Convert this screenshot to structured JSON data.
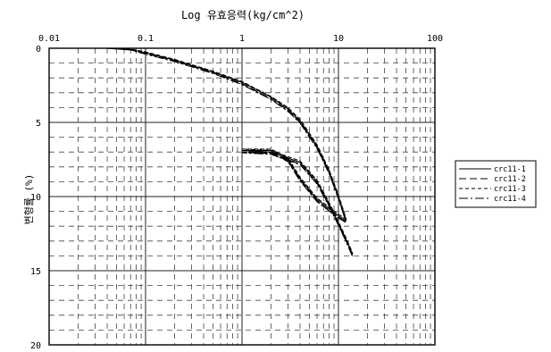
{
  "chart_data": {
    "type": "line",
    "title": "Log 유효응력(kg/cm^2)",
    "xlabel": "",
    "ylabel": "변형률 (%)",
    "x_scale": "log",
    "xlim": [
      0.01,
      100
    ],
    "ylim": [
      0,
      20
    ],
    "y_inverted": true,
    "x_ticks": [
      {
        "value": 0.01,
        "label": "0.01"
      },
      {
        "value": 0.1,
        "label": "0.1"
      },
      {
        "value": 1,
        "label": "1"
      },
      {
        "value": 10,
        "label": "10"
      },
      {
        "value": 100,
        "label": "100"
      }
    ],
    "y_ticks": [
      {
        "value": 0,
        "label": "0"
      },
      {
        "value": 5,
        "label": "5"
      },
      {
        "value": 10,
        "label": "10"
      },
      {
        "value": 15,
        "label": "15"
      },
      {
        "value": 20,
        "label": "20"
      }
    ],
    "grid": true,
    "legend_position": "right",
    "series": [
      {
        "name": "crc11-1",
        "x": [
          0.04,
          0.07,
          0.1,
          0.2,
          0.5,
          1,
          2,
          3,
          4,
          6,
          8,
          10,
          12,
          10,
          6,
          4,
          3,
          2,
          1,
          2,
          4,
          6,
          8,
          10,
          12,
          14
        ],
        "y": [
          0.0,
          0.1,
          0.3,
          0.8,
          1.6,
          2.3,
          3.3,
          4.1,
          4.9,
          6.6,
          8.3,
          10.0,
          11.6,
          11.3,
          10.2,
          8.8,
          7.5,
          6.9,
          6.9,
          7.0,
          7.7,
          9.0,
          10.5,
          11.8,
          12.9,
          13.9
        ],
        "dash": "solid"
      },
      {
        "name": "crc11-2",
        "x": [
          0.04,
          0.07,
          0.1,
          0.2,
          0.5,
          1,
          2,
          3,
          4,
          6,
          8,
          10,
          12,
          10,
          6,
          4,
          3,
          2,
          1,
          2,
          4,
          6,
          8,
          10,
          12,
          14
        ],
        "y": [
          0.0,
          0.1,
          0.35,
          0.85,
          1.65,
          2.4,
          3.4,
          4.2,
          5.0,
          6.7,
          8.4,
          10.1,
          11.7,
          11.4,
          10.3,
          8.9,
          7.6,
          7.0,
          7.0,
          7.1,
          7.8,
          9.1,
          10.6,
          11.9,
          13.0,
          14.0
        ],
        "dash": "8 4"
      },
      {
        "name": "crc11-3",
        "x": [
          0.04,
          0.07,
          0.1,
          0.2,
          0.5,
          1,
          2,
          3,
          4,
          6,
          8,
          10,
          12,
          10,
          6,
          4,
          3,
          2,
          1,
          2,
          4,
          6,
          8,
          10,
          12,
          14
        ],
        "y": [
          0.0,
          0.05,
          0.25,
          0.75,
          1.55,
          2.25,
          3.25,
          4.0,
          4.8,
          6.5,
          8.2,
          9.9,
          11.5,
          11.2,
          10.1,
          8.7,
          7.4,
          6.8,
          6.8,
          6.9,
          7.6,
          8.9,
          10.4,
          11.7,
          12.8,
          13.8
        ],
        "dash": "4 3"
      },
      {
        "name": "crc11-4",
        "x": [
          0.04,
          0.07,
          0.1,
          0.2,
          0.5,
          1,
          2,
          3,
          4,
          6,
          8,
          10,
          12,
          10,
          6,
          4,
          3,
          2,
          1,
          2,
          4,
          6,
          8,
          10,
          12,
          14
        ],
        "y": [
          0.0,
          0.12,
          0.4,
          0.9,
          1.7,
          2.45,
          3.45,
          4.25,
          5.05,
          6.75,
          8.45,
          10.15,
          11.75,
          11.45,
          10.35,
          8.95,
          7.65,
          7.05,
          7.05,
          7.15,
          7.85,
          9.15,
          10.65,
          11.95,
          13.05,
          14.05
        ],
        "dash": "10 3 2 3"
      }
    ]
  }
}
